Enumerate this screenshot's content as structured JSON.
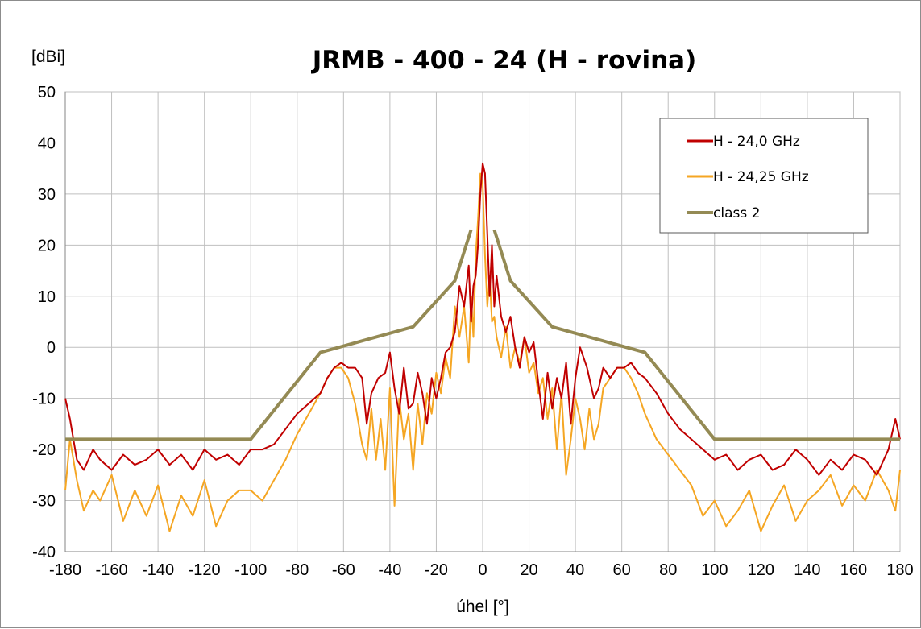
{
  "chart_data": {
    "type": "line",
    "title": "JRMB - 400 - 24 (H - rovina)",
    "xlabel": "úhel [°]",
    "ylabel": "[dBi]",
    "xlim": [
      -180,
      180
    ],
    "ylim": [
      -40,
      50
    ],
    "xticks": [
      -180,
      -160,
      -140,
      -120,
      -100,
      -80,
      -60,
      -40,
      -20,
      0,
      20,
      40,
      60,
      80,
      100,
      120,
      140,
      160,
      180
    ],
    "yticks": [
      -40,
      -30,
      -20,
      -10,
      0,
      10,
      20,
      30,
      40,
      50
    ],
    "grid": true,
    "legend_position": "top-right",
    "series": [
      {
        "name": "H - 24,0 GHz",
        "color": "#c00000",
        "x": [
          -180,
          -178,
          -175,
          -172,
          -168,
          -165,
          -160,
          -155,
          -150,
          -145,
          -140,
          -135,
          -130,
          -125,
          -120,
          -115,
          -110,
          -105,
          -100,
          -95,
          -90,
          -85,
          -80,
          -75,
          -70,
          -67,
          -64,
          -61,
          -58,
          -55,
          -52,
          -50,
          -48,
          -45,
          -42,
          -40,
          -38,
          -36,
          -34,
          -32,
          -30,
          -28,
          -26,
          -24,
          -22,
          -20,
          -18,
          -16,
          -14,
          -12,
          -10,
          -8,
          -6,
          -5,
          -4,
          -3,
          -2,
          -1,
          0,
          1,
          2,
          3,
          4,
          5,
          6,
          8,
          10,
          12,
          14,
          16,
          18,
          20,
          22,
          24,
          26,
          28,
          30,
          32,
          34,
          36,
          38,
          40,
          42,
          45,
          48,
          50,
          52,
          55,
          58,
          61,
          64,
          67,
          70,
          75,
          80,
          85,
          90,
          95,
          100,
          105,
          110,
          115,
          120,
          125,
          130,
          135,
          140,
          145,
          150,
          155,
          160,
          165,
          170,
          175,
          178,
          180
        ],
        "y": [
          -10,
          -14,
          -22,
          -24,
          -20,
          -22,
          -24,
          -21,
          -23,
          -22,
          -20,
          -23,
          -21,
          -24,
          -20,
          -22,
          -21,
          -23,
          -20,
          -20,
          -19,
          -16,
          -13,
          -11,
          -9,
          -6,
          -4,
          -3,
          -4,
          -4,
          -6,
          -15,
          -9,
          -6,
          -5,
          -1,
          -8,
          -13,
          -4,
          -12,
          -11,
          -5,
          -9,
          -15,
          -6,
          -10,
          -6,
          -1,
          0,
          3,
          12,
          8,
          16,
          5,
          12,
          14,
          20,
          30,
          36,
          34,
          22,
          10,
          20,
          8,
          14,
          6,
          3,
          6,
          0,
          -4,
          2,
          -1,
          1,
          -7,
          -14,
          -5,
          -12,
          -6,
          -10,
          -3,
          -15,
          -6,
          0,
          -4,
          -10,
          -8,
          -4,
          -6,
          -4,
          -4,
          -3,
          -5,
          -6,
          -9,
          -13,
          -16,
          -18,
          -20,
          -22,
          -21,
          -24,
          -22,
          -21,
          -24,
          -23,
          -20,
          -22,
          -25,
          -22,
          -24,
          -21,
          -22,
          -25,
          -20,
          -14,
          -18
        ]
      },
      {
        "name": "H - 24,25 GHz",
        "color": "#f5a623",
        "x": [
          -180,
          -178,
          -175,
          -172,
          -168,
          -165,
          -160,
          -155,
          -150,
          -145,
          -140,
          -135,
          -130,
          -125,
          -120,
          -115,
          -110,
          -105,
          -100,
          -95,
          -90,
          -85,
          -80,
          -75,
          -70,
          -67,
          -64,
          -61,
          -58,
          -55,
          -52,
          -50,
          -48,
          -46,
          -44,
          -42,
          -40,
          -38,
          -36,
          -34,
          -32,
          -30,
          -28,
          -26,
          -24,
          -22,
          -20,
          -18,
          -16,
          -14,
          -12,
          -10,
          -8,
          -6,
          -5,
          -4,
          -3,
          -2,
          -1,
          0,
          1,
          2,
          3,
          4,
          5,
          6,
          8,
          10,
          12,
          14,
          16,
          18,
          20,
          22,
          24,
          26,
          28,
          30,
          32,
          34,
          36,
          38,
          40,
          42,
          44,
          46,
          48,
          50,
          52,
          55,
          58,
          61,
          64,
          67,
          70,
          75,
          80,
          85,
          90,
          95,
          100,
          105,
          110,
          115,
          120,
          125,
          130,
          135,
          140,
          145,
          150,
          155,
          160,
          165,
          170,
          175,
          178,
          180
        ],
        "y": [
          -28,
          -18,
          -26,
          -32,
          -28,
          -30,
          -25,
          -34,
          -28,
          -33,
          -27,
          -36,
          -29,
          -33,
          -26,
          -35,
          -30,
          -28,
          -28,
          -30,
          -26,
          -22,
          -17,
          -13,
          -9,
          -6,
          -4,
          -4,
          -6,
          -11,
          -19,
          -22,
          -12,
          -22,
          -14,
          -24,
          -8,
          -31,
          -10,
          -18,
          -13,
          -24,
          -11,
          -19,
          -9,
          -13,
          -5,
          -9,
          -2,
          -6,
          8,
          2,
          8,
          -3,
          10,
          2,
          18,
          25,
          34,
          32,
          18,
          8,
          14,
          5,
          6,
          2,
          -2,
          4,
          -4,
          0,
          -3,
          2,
          -5,
          -3,
          -9,
          -6,
          -14,
          -8,
          -20,
          -9,
          -25,
          -18,
          -10,
          -14,
          -20,
          -12,
          -18,
          -15,
          -8,
          -6,
          -4,
          -4,
          -6,
          -9,
          -13,
          -18,
          -21,
          -24,
          -27,
          -33,
          -30,
          -35,
          -32,
          -28,
          -36,
          -31,
          -27,
          -34,
          -30,
          -28,
          -25,
          -31,
          -27,
          -30,
          -24,
          -28,
          -32,
          -24
        ]
      },
      {
        "name": "class 2",
        "color": "#948a54",
        "x": [
          -180,
          -100,
          -70,
          -30,
          -12,
          -5
        ],
        "y": [
          -18,
          -18,
          -1,
          4,
          13,
          23
        ],
        "x2": [
          5,
          12,
          30,
          70,
          100,
          180
        ],
        "y2": [
          23,
          13,
          4,
          -1,
          -18,
          -18
        ]
      }
    ]
  }
}
